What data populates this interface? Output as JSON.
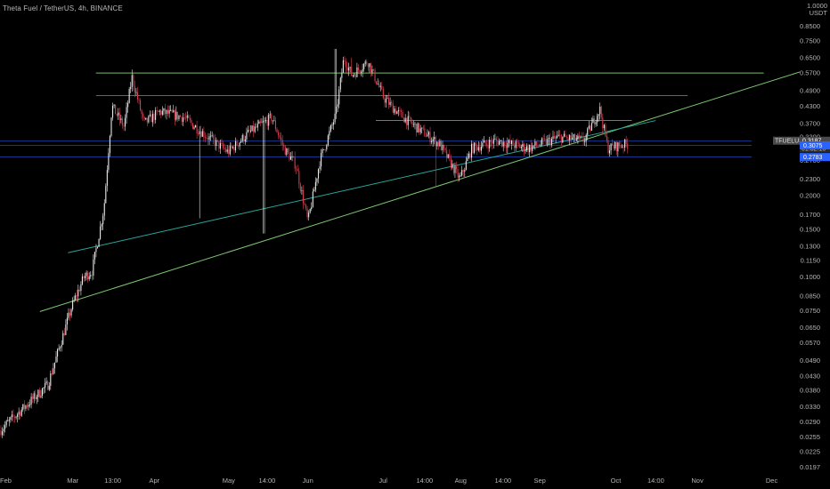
{
  "header": {
    "title": "Theta Fuel / TetherUS, 4h, BINANCE"
  },
  "price_scale": {
    "currency_top": "1.0000",
    "currency_unit": "USDT",
    "ticks": [
      "0.8500",
      "0.7500",
      "0.6500",
      "0.5700",
      "0.4900",
      "0.4300",
      "0.3700",
      "0.3300",
      "0.2700",
      "0.2300",
      "0.2000",
      "0.1700",
      "0.1500",
      "0.1300",
      "0.1150",
      "0.1000",
      "0.0850",
      "0.0750",
      "0.0650",
      "0.0570",
      "0.0490",
      "0.0430",
      "0.0380",
      "0.0330",
      "0.0290",
      "0.0255",
      "0.0225",
      "0.0197"
    ]
  },
  "time_scale": {
    "labels": [
      "Feb",
      "Mar",
      "13:00",
      "Apr",
      "May",
      "14:00",
      "Jun",
      "Jul",
      "14:00",
      "Aug",
      "14:00",
      "Sep",
      "Oct",
      "14:00",
      "Nov",
      "Dec"
    ]
  },
  "price_tags": [
    {
      "label": "TFUELUSDT",
      "value": "0.3187",
      "countdown": "01:32:15",
      "color": "#4a4a4a"
    },
    {
      "value": "0.3075",
      "color": "#2962ff"
    },
    {
      "value": "0.2783",
      "color": "#2962ff"
    }
  ],
  "chart_data": {
    "type": "candlestick",
    "symbol": "TFUELUSDT",
    "interval": "4h",
    "exchange": "BINANCE",
    "scale": "log",
    "y_range": [
      0.0185,
      1.0
    ],
    "last_price": 0.3187,
    "price_path": [
      [
        0.0,
        0.027
      ],
      [
        0.06,
        0.04
      ],
      [
        0.09,
        0.078
      ],
      [
        0.105,
        0.1
      ],
      [
        0.115,
        0.105
      ],
      [
        0.13,
        0.18
      ],
      [
        0.14,
        0.43
      ],
      [
        0.155,
        0.36
      ],
      [
        0.165,
        0.55
      ],
      [
        0.18,
        0.37
      ],
      [
        0.2,
        0.41
      ],
      [
        0.23,
        0.39
      ],
      [
        0.26,
        0.33
      ],
      [
        0.285,
        0.29
      ],
      [
        0.31,
        0.34
      ],
      [
        0.34,
        0.39
      ],
      [
        0.355,
        0.3
      ],
      [
        0.37,
        0.26
      ],
      [
        0.385,
        0.16
      ],
      [
        0.4,
        0.27
      ],
      [
        0.42,
        0.4
      ],
      [
        0.43,
        0.65
      ],
      [
        0.44,
        0.56
      ],
      [
        0.46,
        0.63
      ],
      [
        0.48,
        0.46
      ],
      [
        0.5,
        0.4
      ],
      [
        0.52,
        0.36
      ],
      [
        0.55,
        0.31
      ],
      [
        0.575,
        0.23
      ],
      [
        0.59,
        0.3
      ],
      [
        0.62,
        0.32
      ],
      [
        0.66,
        0.3
      ],
      [
        0.7,
        0.33
      ],
      [
        0.73,
        0.32
      ],
      [
        0.75,
        0.42
      ],
      [
        0.76,
        0.3
      ],
      [
        0.78,
        0.31
      ]
    ],
    "horizontal_levels": [
      {
        "price": 0.57,
        "color": "#7bc96f"
      },
      {
        "price": 0.47,
        "color": "#e03a3a"
      },
      {
        "price": 0.38,
        "color": "#26a69a"
      },
      {
        "price": 0.3187,
        "color": "#2962ff"
      },
      {
        "price": 0.3075,
        "color": "#2962ff"
      },
      {
        "price": 0.2783,
        "color": "#2962ff"
      }
    ],
    "trendlines": [
      {
        "from": [
          0.05,
          0.0745
        ],
        "to": [
          1.0,
          0.575
        ],
        "color": "#7bc96f"
      },
      {
        "from": [
          0.085,
          0.123
        ],
        "to": [
          0.82,
          0.38
        ],
        "color": "#26a69a"
      }
    ]
  }
}
